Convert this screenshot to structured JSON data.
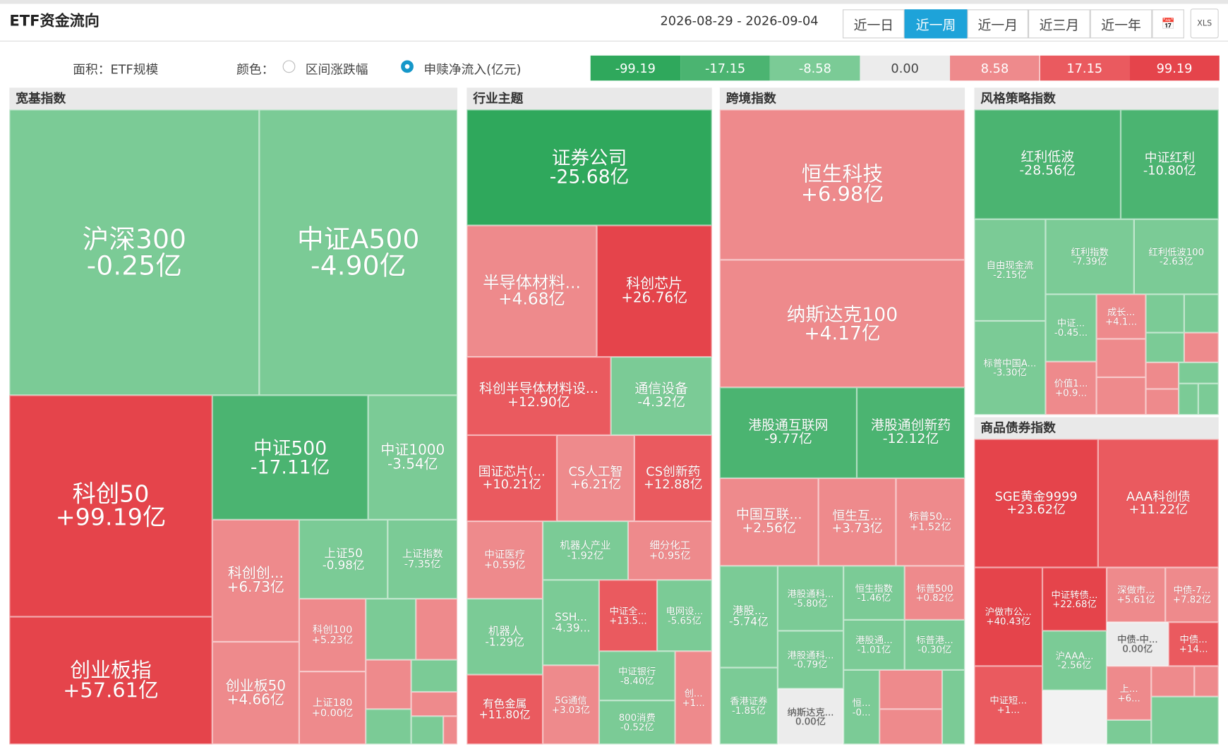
{
  "header": {
    "title": "ETF资金流向",
    "date_range": "2026-08-29 - 2026-09-04",
    "periods": [
      "近一日",
      "近一周",
      "近一月",
      "近三月",
      "近一年"
    ],
    "active_period": 1,
    "calendar": "📅",
    "export": "XLS"
  },
  "legend": {
    "area": "面积：ETF规模",
    "color": "颜色：",
    "options": [
      "区间涨跌幅",
      "申赎净流入(亿元)"
    ],
    "selected_option": 1,
    "scale": [
      {
        "label": "-99.19",
        "color": "#2fa85c"
      },
      {
        "label": "-17.15",
        "color": "#4bb471"
      },
      {
        "label": "-8.58",
        "color": "#7bcb96"
      },
      {
        "label": "0.00",
        "color": "#ececec"
      },
      {
        "label": "8.58",
        "color": "#ee8a8c"
      },
      {
        "label": "17.15",
        "color": "#ea5a5f"
      },
      {
        "label": "99.19",
        "color": "#e5444b"
      }
    ]
  },
  "sections": [
    {
      "title": "宽基指数",
      "tiles": [
        {
          "name": "沪深300",
          "value": "-0.25亿",
          "color": "#7bcb96"
        },
        {
          "name": "中证A500",
          "value": "-4.90亿",
          "color": "#7bcb96"
        },
        {
          "name": "科创50",
          "value": "+99.19亿",
          "color": "#e5444b"
        },
        {
          "name": "创业板指",
          "value": "+57.61亿",
          "color": "#e5444b"
        },
        {
          "name": "中证500",
          "value": "-17.11亿",
          "color": "#4bb471"
        },
        {
          "name": "中证1000",
          "value": "-3.54亿",
          "color": "#7bcb96"
        },
        {
          "name": "科创创...",
          "value": "+6.73亿",
          "color": "#ee8a8c"
        },
        {
          "name": "创业板50",
          "value": "+4.66亿",
          "color": "#ee8a8c"
        },
        {
          "name": "上证50",
          "value": "-0.98亿",
          "color": "#7bcb96"
        },
        {
          "name": "上证指数",
          "value": "-7.35亿",
          "color": "#7bcb96"
        },
        {
          "name": "科创100",
          "value": "+5.23亿",
          "color": "#ee8a8c"
        },
        {
          "name": "上证180",
          "value": "+0.00亿",
          "color": "#ee8a8c"
        }
      ]
    },
    {
      "title": "行业主题",
      "tiles": [
        {
          "name": "证券公司",
          "value": "-25.68亿",
          "color": "#2fa85c"
        },
        {
          "name": "半导体材料...",
          "value": "+4.68亿",
          "color": "#ee8a8c"
        },
        {
          "name": "科创芯片",
          "value": "+26.76亿",
          "color": "#e5444b"
        },
        {
          "name": "科创半导体材料设...",
          "value": "+12.90亿",
          "color": "#ea5a5f"
        },
        {
          "name": "通信设备",
          "value": "-4.32亿",
          "color": "#7bcb96"
        },
        {
          "name": "国证芯片(...",
          "value": "+10.21亿",
          "color": "#ea5a5f"
        },
        {
          "name": "CS人工智",
          "value": "+6.21亿",
          "color": "#ee8a8c"
        },
        {
          "name": "CS创新药",
          "value": "+12.88亿",
          "color": "#ea5a5f"
        },
        {
          "name": "中证医疗",
          "value": "+0.59亿",
          "color": "#ee8a8c"
        },
        {
          "name": "机器人产业",
          "value": "-1.92亿",
          "color": "#7bcb96"
        },
        {
          "name": "细分化工",
          "value": "+0.95亿",
          "color": "#ee8a8c"
        },
        {
          "name": "机器人",
          "value": "-1.29亿",
          "color": "#7bcb96"
        },
        {
          "name": "SSH...",
          "value": "-4.39...",
          "color": "#7bcb96"
        },
        {
          "name": "中证全...",
          "value": "+13.5...",
          "color": "#ea5a5f"
        },
        {
          "name": "电网设...",
          "value": "-5.65亿",
          "color": "#7bcb96"
        },
        {
          "name": "中证银行",
          "value": "-8.40亿",
          "color": "#7bcb96"
        },
        {
          "name": "创...",
          "value": "+1...",
          "color": "#ee8a8c"
        },
        {
          "name": "有色金属",
          "value": "+11.80亿",
          "color": "#ea5a5f"
        },
        {
          "name": "5G通信",
          "value": "+3.03亿",
          "color": "#ee8a8c"
        },
        {
          "name": "800消费",
          "value": "-0.52亿",
          "color": "#7bcb96"
        }
      ]
    },
    {
      "title": "跨境指数",
      "tiles": [
        {
          "name": "恒生科技",
          "value": "+6.98亿",
          "color": "#ee8a8c"
        },
        {
          "name": "纳斯达克100",
          "value": "+4.17亿",
          "color": "#ee8a8c"
        },
        {
          "name": "港股通互联网",
          "value": "-9.77亿",
          "color": "#4bb471"
        },
        {
          "name": "港股通创新药",
          "value": "-12.12亿",
          "color": "#4bb471"
        },
        {
          "name": "中国互联...",
          "value": "+2.56亿",
          "color": "#ee8a8c"
        },
        {
          "name": "恒生互...",
          "value": "+3.73亿",
          "color": "#ee8a8c"
        },
        {
          "name": "标普50...",
          "value": "+1.52亿",
          "color": "#ee8a8c"
        },
        {
          "name": "港股...",
          "value": "-5.74亿",
          "color": "#7bcb96"
        },
        {
          "name": "港股通科...",
          "value": "-5.80亿",
          "color": "#7bcb96"
        },
        {
          "name": "恒生指数",
          "value": "-1.46亿",
          "color": "#7bcb96"
        },
        {
          "name": "标普500",
          "value": "+0.82亿",
          "color": "#ee8a8c"
        },
        {
          "name": "港股通科...",
          "value": "-0.79亿",
          "color": "#7bcb96"
        },
        {
          "name": "港股通...",
          "value": "-1.01亿",
          "color": "#7bcb96"
        },
        {
          "name": "标普港...",
          "value": "-0.30亿",
          "color": "#7bcb96"
        },
        {
          "name": "香港证券",
          "value": "-1.85亿",
          "color": "#7bcb96"
        },
        {
          "name": "纳斯达克...",
          "value": "0.00亿",
          "color": "#ececec"
        },
        {
          "name": "恒...",
          "value": "-0...",
          "color": "#7bcb96"
        }
      ]
    },
    {
      "title": "风格策略指数",
      "tiles": [
        {
          "name": "红利低波",
          "value": "-28.56亿",
          "color": "#4bb471"
        },
        {
          "name": "中证红利",
          "value": "-10.80亿",
          "color": "#4bb471"
        },
        {
          "name": "自由现金流",
          "value": "-2.15亿",
          "color": "#7bcb96"
        },
        {
          "name": "红利指数",
          "value": "-7.39亿",
          "color": "#7bcb96"
        },
        {
          "name": "红利低波100",
          "value": "-2.63亿",
          "color": "#7bcb96"
        },
        {
          "name": "中证...",
          "value": "-0.45...",
          "color": "#7bcb96"
        },
        {
          "name": "成长...",
          "value": "+4.1...",
          "color": "#ee8a8c"
        },
        {
          "name": "标普中国A...",
          "value": "-3.30亿",
          "color": "#7bcb96"
        },
        {
          "name": "价值1...",
          "value": "+0.9...",
          "color": "#ee8a8c"
        }
      ]
    },
    {
      "title": "商品债券指数",
      "tiles": [
        {
          "name": "SGE黄金9999",
          "value": "+23.62亿",
          "color": "#e5444b"
        },
        {
          "name": "AAA科创债",
          "value": "+11.22亿",
          "color": "#ea5a5f"
        },
        {
          "name": "沪做市公...",
          "value": "+40.43亿",
          "color": "#e5444b"
        },
        {
          "name": "中证转债...",
          "value": "+22.68亿",
          "color": "#e5444b"
        },
        {
          "name": "深做市...",
          "value": "+5.61亿",
          "color": "#ee8a8c"
        },
        {
          "name": "中债-7...",
          "value": "+7.82亿",
          "color": "#ee8a8c"
        },
        {
          "name": "沪AAA...",
          "value": "-2.56亿",
          "color": "#7bcb96"
        },
        {
          "name": "中债-中...",
          "value": "0.00亿",
          "color": "#ececec"
        },
        {
          "name": "中债...",
          "value": "+14...",
          "color": "#ea5a5f"
        },
        {
          "name": "中证短...",
          "value": "+1...",
          "color": "#ea5a5f"
        },
        {
          "name": "上...",
          "value": "+6...",
          "color": "#ee8a8c"
        }
      ]
    }
  ]
}
